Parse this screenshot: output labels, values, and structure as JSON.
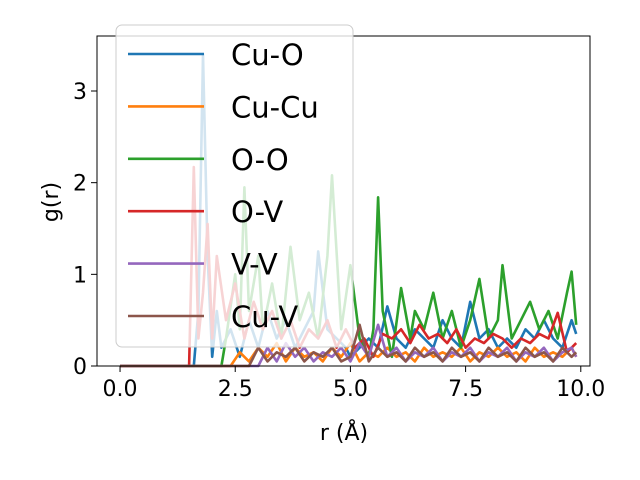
{
  "chart_data": {
    "type": "line",
    "xlabel": "r (Å)",
    "ylabel": "g(r)",
    "xlim": [
      -0.5,
      10.2
    ],
    "ylim": [
      0,
      3.6
    ],
    "xticks": [
      "0.0",
      "2.5",
      "5.0",
      "7.5",
      "10.0"
    ],
    "xtick_values": [
      0,
      2.5,
      5.0,
      7.5,
      10.0
    ],
    "yticks": [
      "0",
      "1",
      "2",
      "3"
    ],
    "ytick_values": [
      0,
      1,
      2,
      3
    ],
    "grid": false,
    "legend_position": "upper-left",
    "series": [
      {
        "name": "Cu-O",
        "color": "#1f77b4",
        "x": [
          0,
          1.6,
          1.7,
          1.8,
          1.9,
          2.0,
          2.1,
          2.2,
          2.4,
          2.6,
          2.8,
          3.0,
          3.2,
          3.4,
          3.6,
          3.8,
          4.0,
          4.2,
          4.3,
          4.5,
          4.7,
          4.9,
          5.0,
          5.2,
          5.4,
          5.6,
          5.8,
          6.0,
          6.2,
          6.4,
          6.6,
          6.8,
          7.0,
          7.2,
          7.4,
          7.6,
          7.8,
          8.0,
          8.2,
          8.4,
          8.6,
          8.8,
          9.0,
          9.2,
          9.4,
          9.6,
          9.8,
          9.9
        ],
        "y": [
          0,
          0,
          0.6,
          3.4,
          1.2,
          0.1,
          0.6,
          0.2,
          0.4,
          0.1,
          0.5,
          0.2,
          0.6,
          0.3,
          0.5,
          0.2,
          0.4,
          0.6,
          1.25,
          0.4,
          0.3,
          0.2,
          0.1,
          0.2,
          0.3,
          0.2,
          0.65,
          0.3,
          0.2,
          0.4,
          0.3,
          0.2,
          0.5,
          0.3,
          0.2,
          0.7,
          0.3,
          0.4,
          0.2,
          0.3,
          0.2,
          0.4,
          0.3,
          0.5,
          0.3,
          0.2,
          0.5,
          0.35
        ]
      },
      {
        "name": "Cu-Cu",
        "color": "#ff7f0e",
        "x": [
          0,
          2.4,
          2.6,
          2.8,
          3.0,
          3.2,
          3.4,
          3.6,
          3.8,
          4.0,
          4.2,
          4.4,
          4.6,
          4.8,
          5.0,
          5.2,
          5.4,
          5.6,
          5.8,
          6.0,
          6.2,
          6.4,
          6.6,
          6.8,
          7.0,
          7.2,
          7.4,
          7.6,
          7.8,
          8.0,
          8.2,
          8.4,
          8.6,
          8.8,
          9.0,
          9.2,
          9.4,
          9.6,
          9.8,
          9.9
        ],
        "y": [
          0,
          0,
          0.15,
          0.05,
          0.2,
          0.1,
          0.25,
          0.05,
          0.2,
          0.1,
          0.15,
          0.05,
          0.2,
          0.1,
          0.25,
          0.05,
          0.15,
          0.1,
          0.2,
          0.1,
          0.15,
          0.05,
          0.2,
          0.1,
          0.15,
          0.1,
          0.2,
          0.05,
          0.15,
          0.1,
          0.2,
          0.1,
          0.15,
          0.05,
          0.2,
          0.1,
          0.15,
          0.1,
          0.2,
          0.1
        ]
      },
      {
        "name": "O-O",
        "color": "#2ca02c",
        "x": [
          0,
          2.2,
          2.3,
          2.5,
          2.6,
          2.7,
          2.8,
          3.0,
          3.1,
          3.3,
          3.5,
          3.7,
          3.9,
          4.1,
          4.3,
          4.5,
          4.6,
          4.8,
          5.0,
          5.2,
          5.4,
          5.5,
          5.6,
          5.7,
          5.9,
          6.1,
          6.3,
          6.4,
          6.6,
          6.8,
          7.0,
          7.2,
          7.4,
          7.6,
          7.8,
          8.0,
          8.2,
          8.3,
          8.5,
          8.7,
          8.9,
          9.1,
          9.3,
          9.5,
          9.7,
          9.8,
          9.9
        ],
        "y": [
          0,
          0,
          0.3,
          1.0,
          0.4,
          1.95,
          0.6,
          1.2,
          0.4,
          0.9,
          0.3,
          1.3,
          0.5,
          0.8,
          0.3,
          1.2,
          2.08,
          0.4,
          1.1,
          0.3,
          0.1,
          0.4,
          1.84,
          0.6,
          0.1,
          0.85,
          0.3,
          0.6,
          0.4,
          0.8,
          0.3,
          0.6,
          0.2,
          0.5,
          0.95,
          0.3,
          0.5,
          1.1,
          0.3,
          0.5,
          0.7,
          0.4,
          0.6,
          0.3,
          0.8,
          1.03,
          0.45
        ]
      },
      {
        "name": "O-V",
        "color": "#d62728",
        "x": [
          0,
          1.5,
          1.6,
          1.7,
          1.8,
          1.9,
          2.0,
          2.1,
          2.3,
          2.5,
          2.7,
          2.9,
          3.1,
          3.3,
          3.5,
          3.7,
          3.9,
          4.1,
          4.3,
          4.5,
          4.7,
          4.9,
          5.1,
          5.3,
          5.5,
          5.7,
          5.9,
          6.1,
          6.3,
          6.5,
          6.7,
          6.9,
          7.1,
          7.3,
          7.5,
          7.7,
          7.9,
          8.1,
          8.3,
          8.5,
          8.7,
          8.9,
          9.1,
          9.3,
          9.5,
          9.7,
          9.9
        ],
        "y": [
          0,
          0,
          2.17,
          0.3,
          0.8,
          1.55,
          0.3,
          1.2,
          0.5,
          0.9,
          0.3,
          0.7,
          0.4,
          0.6,
          0.3,
          0.5,
          0.2,
          0.4,
          0.3,
          0.5,
          0.2,
          0.4,
          0.2,
          0.3,
          0.1,
          0.35,
          0.3,
          0.4,
          0.25,
          0.45,
          0.3,
          0.35,
          0.25,
          0.4,
          0.2,
          0.3,
          0.25,
          0.35,
          0.3,
          0.2,
          0.3,
          0.25,
          0.35,
          0.3,
          0.58,
          0.15,
          0.25
        ]
      },
      {
        "name": "V-V",
        "color": "#9467bd",
        "x": [
          0,
          3.0,
          3.2,
          3.4,
          3.6,
          3.8,
          4.0,
          4.2,
          4.4,
          4.6,
          4.8,
          5.0,
          5.2,
          5.4,
          5.6,
          5.8,
          6.0,
          6.2,
          6.4,
          6.6,
          6.8,
          7.0,
          7.2,
          7.4,
          7.6,
          7.8,
          8.0,
          8.2,
          8.4,
          8.6,
          8.8,
          9.0,
          9.2,
          9.4,
          9.6,
          9.8,
          9.9
        ],
        "y": [
          0,
          0,
          0.2,
          0.05,
          0.25,
          0.1,
          0.2,
          0.05,
          0.15,
          0.1,
          0.2,
          0.05,
          0.25,
          0.1,
          0.45,
          0.1,
          0.2,
          0.05,
          0.15,
          0.1,
          0.2,
          0.05,
          0.15,
          0.1,
          0.2,
          0.05,
          0.15,
          0.1,
          0.2,
          0.05,
          0.15,
          0.1,
          0.2,
          0.05,
          0.15,
          0.2,
          0.1
        ]
      },
      {
        "name": "Cu-V",
        "color": "#8c564b",
        "x": [
          0,
          2.8,
          3.0,
          3.2,
          3.4,
          3.6,
          3.8,
          4.0,
          4.2,
          4.4,
          4.6,
          4.8,
          5.0,
          5.2,
          5.4,
          5.6,
          5.8,
          6.0,
          6.2,
          6.4,
          6.6,
          6.8,
          7.0,
          7.2,
          7.4,
          7.6,
          7.8,
          8.0,
          8.2,
          8.4,
          8.6,
          8.8,
          9.0,
          9.2,
          9.4,
          9.6,
          9.8,
          9.9
        ],
        "y": [
          0,
          0,
          0.2,
          0.05,
          0.15,
          0.1,
          0.2,
          0.05,
          0.15,
          0.1,
          0.2,
          0.05,
          0.1,
          0.45,
          0.05,
          0.2,
          0.1,
          0.15,
          0.05,
          0.2,
          0.1,
          0.15,
          0.05,
          0.2,
          0.1,
          0.15,
          0.05,
          0.2,
          0.1,
          0.15,
          0.05,
          0.2,
          0.1,
          0.15,
          0.05,
          0.2,
          0.1,
          0.15
        ]
      }
    ]
  }
}
